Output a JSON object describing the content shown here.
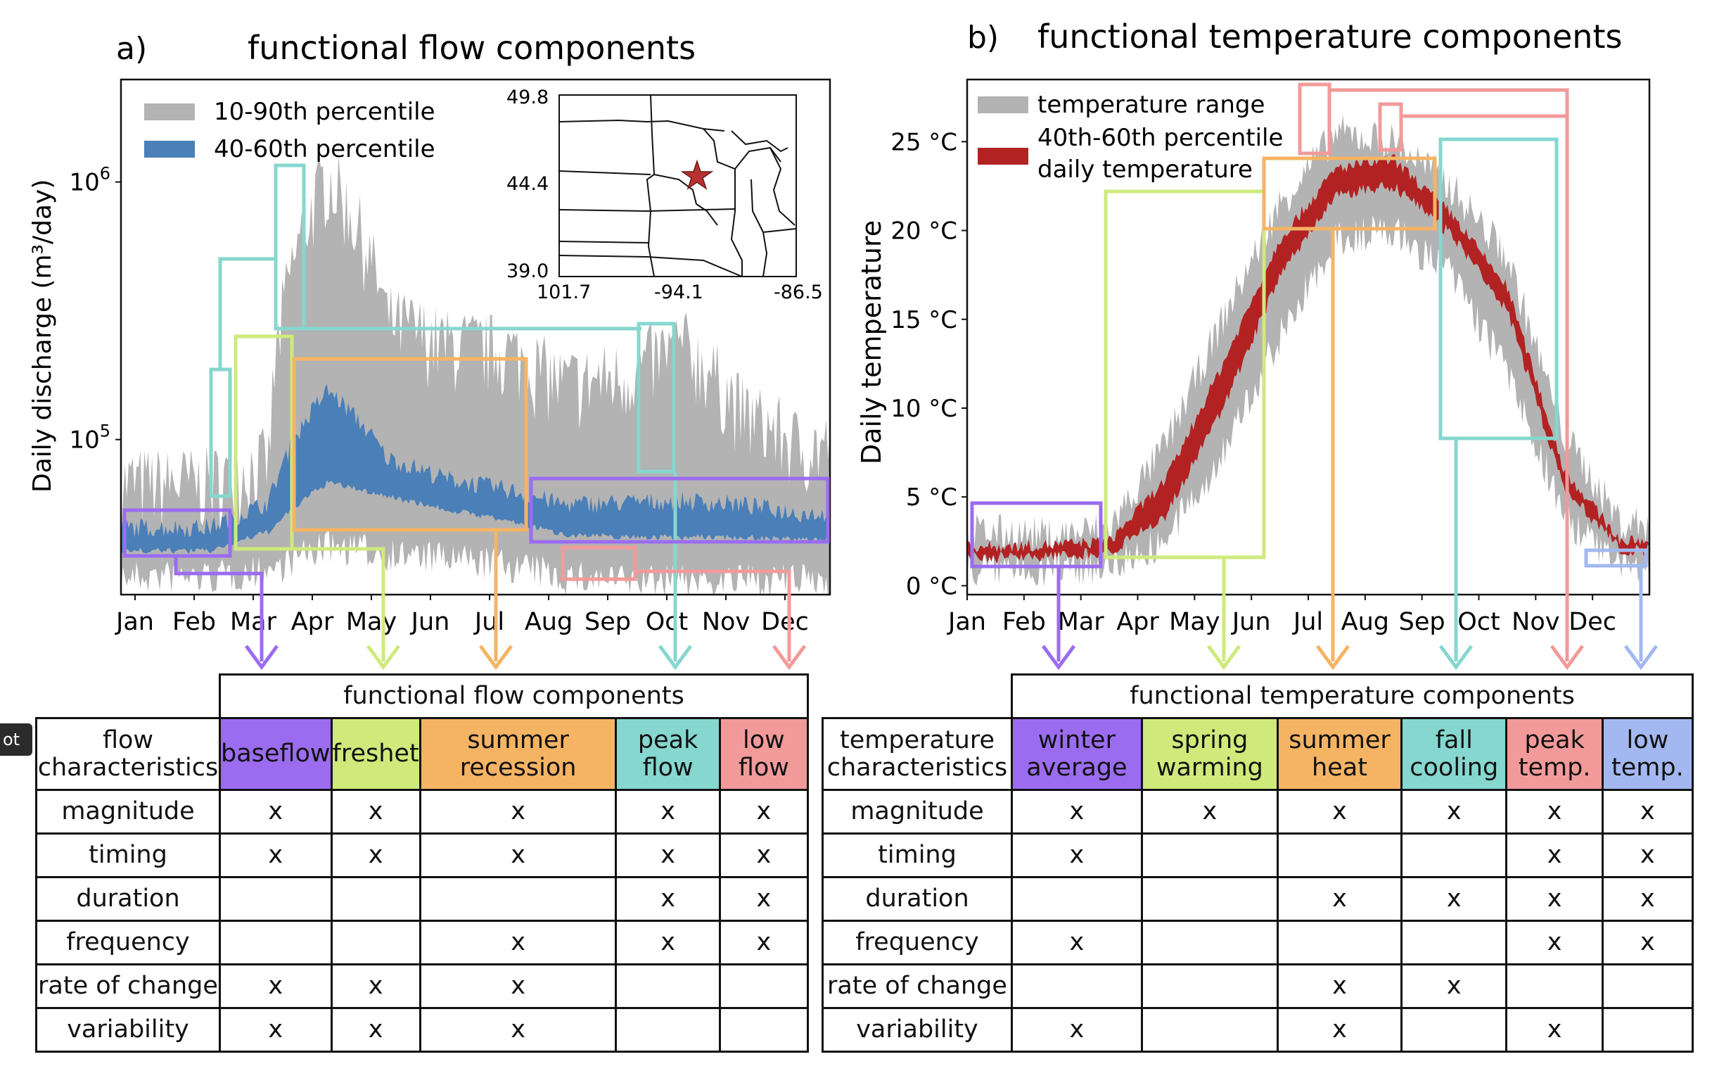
{
  "fonts_note": "",
  "panel_a": {
    "label": "a)",
    "title": "functional flow components",
    "ylabel": "Daily discharge (m³/day)",
    "yticks": [
      {
        "label": "10",
        "exp": "6",
        "value": 1000000
      },
      {
        "label": "10",
        "exp": "5",
        "value": 100000
      }
    ],
    "months": [
      "Jan",
      "Feb",
      "Mar",
      "Apr",
      "May",
      "Jun",
      "Jul",
      "Aug",
      "Sep",
      "Oct",
      "Nov",
      "Dec"
    ],
    "legend": [
      {
        "label": "10-90th percentile",
        "color": "#b3b3b3"
      },
      {
        "label": "40-60th percentile",
        "color": "#4a7fb8"
      }
    ],
    "inset": {
      "y_top": "49.8",
      "y_mid": "44.4",
      "y_bot": "39.0",
      "x_left": "101.7",
      "x_mid": "-94.1",
      "x_right": "-86.5"
    },
    "components": [
      {
        "name": "baseflow",
        "color": "#9b6cf0"
      },
      {
        "name": "freshet",
        "color": "#c8e87a"
      },
      {
        "name": "summer recession",
        "color": "#f5b464"
      },
      {
        "name": "peak flow",
        "color": "#86d7cf"
      },
      {
        "name": "low flow",
        "color": "#f29a9a"
      }
    ]
  },
  "panel_b": {
    "label": "b)",
    "title": "functional temperature components",
    "ylabel": "Daily temperature",
    "yticks": [
      "0 °C",
      "5 °C",
      "10 °C",
      "15 °C",
      "20 °C",
      "25 °C"
    ],
    "months": [
      "Jan",
      "Feb",
      "Mar",
      "Apr",
      "May",
      "Jun",
      "Jul",
      "Aug",
      "Sep",
      "Oct",
      "Nov",
      "Dec"
    ],
    "legend": [
      {
        "label": "temperature range",
        "color": "#b3b3b3"
      },
      {
        "label": "40th-60th percentile",
        "color": "#b22222"
      },
      {
        "label": "daily temperature",
        "color": ""
      }
    ]
  },
  "chart_data": [
    {
      "type": "area",
      "title": "functional flow components",
      "ylabel": "Daily discharge (m³/day)",
      "yscale": "log",
      "x": [
        "Jan",
        "Feb",
        "Mar",
        "Apr",
        "May",
        "Jun",
        "Jul",
        "Aug",
        "Sep",
        "Oct",
        "Nov",
        "Dec"
      ],
      "series": [
        {
          "name": "10-90th percentile",
          "low": [
            34000,
            34000,
            36000,
            45000,
            42000,
            40000,
            38000,
            34000,
            33000,
            33000,
            33000,
            33000
          ],
          "high": [
            58000,
            58000,
            70000,
            900000,
            250000,
            200000,
            190000,
            140000,
            150000,
            200000,
            110000,
            80000
          ]
        },
        {
          "name": "40-60th percentile",
          "low": [
            38000,
            38000,
            45000,
            70000,
            62000,
            55000,
            50000,
            44000,
            43000,
            43000,
            43000,
            42000
          ],
          "high": [
            44000,
            44000,
            55000,
            150000,
            82000,
            68000,
            62000,
            54000,
            55000,
            56000,
            54000,
            50000
          ]
        }
      ],
      "ylim": [
        25000,
        2500000
      ]
    },
    {
      "type": "area",
      "title": "functional temperature components",
      "ylabel": "Daily temperature",
      "x": [
        "Jan",
        "Feb",
        "Mar",
        "Apr",
        "May",
        "Jun",
        "Jul",
        "Aug",
        "Sep",
        "Oct",
        "Nov",
        "Dec"
      ],
      "series": [
        {
          "name": "temperature range",
          "low": [
            1.0,
            1.0,
            1.2,
            2.5,
            7.5,
            14.0,
            19.5,
            20.0,
            17.5,
            12.0,
            4.0,
            1.0
          ],
          "high": [
            3.0,
            2.8,
            3.2,
            8.0,
            15.0,
            21.5,
            25.5,
            25.0,
            22.5,
            18.5,
            8.5,
            3.5
          ]
        },
        {
          "name": "40th-60th percentile",
          "low": [
            1.6,
            1.7,
            1.9,
            4.0,
            10.0,
            17.5,
            22.0,
            22.5,
            19.8,
            15.5,
            5.5,
            2.0
          ],
          "high": [
            2.2,
            2.3,
            2.5,
            6.0,
            12.5,
            19.5,
            23.5,
            24.0,
            21.0,
            16.8,
            6.5,
            2.5
          ]
        }
      ],
      "ylim": [
        -0.5,
        28.5
      ]
    }
  ],
  "flow_table": {
    "header": "functional flow components",
    "row_header": "flow characteristics",
    "columns": [
      {
        "label": "baseflow",
        "color": "#9b6cf0"
      },
      {
        "label": "freshet",
        "color": "#cfea7a"
      },
      {
        "label": "summer recession",
        "color": "#f5b464"
      },
      {
        "label": "peak flow",
        "color": "#86d7cf"
      },
      {
        "label": "low flow",
        "color": "#f29a9a"
      }
    ],
    "rows": [
      {
        "label": "magnitude",
        "cells": [
          "x",
          "x",
          "x",
          "x",
          "x"
        ]
      },
      {
        "label": "timing",
        "cells": [
          "x",
          "x",
          "x",
          "x",
          "x"
        ]
      },
      {
        "label": "duration",
        "cells": [
          "",
          "",
          "",
          "x",
          "x"
        ]
      },
      {
        "label": "frequency",
        "cells": [
          "",
          "",
          "x",
          "x",
          "x"
        ]
      },
      {
        "label": "rate of change",
        "cells": [
          "x",
          "x",
          "x",
          "",
          ""
        ]
      },
      {
        "label": "variability",
        "cells": [
          "x",
          "x",
          "x",
          "",
          ""
        ]
      }
    ]
  },
  "temp_table": {
    "header": "functional temperature components",
    "row_header": "temperature characteristics",
    "columns": [
      {
        "label": "winter average",
        "color": "#9b6cf0"
      },
      {
        "label": "spring warming",
        "color": "#cfea7a"
      },
      {
        "label": "summer heat",
        "color": "#f5b464"
      },
      {
        "label": "fall cooling",
        "color": "#86d7cf"
      },
      {
        "label": "peak temp.",
        "color": "#f29a9a"
      },
      {
        "label": "low temp.",
        "color": "#a3b8f0"
      }
    ],
    "rows": [
      {
        "label": "magnitude",
        "cells": [
          "x",
          "x",
          "x",
          "x",
          "x",
          "x"
        ]
      },
      {
        "label": "timing",
        "cells": [
          "x",
          "",
          "",
          "",
          "x",
          "x"
        ]
      },
      {
        "label": "duration",
        "cells": [
          "",
          "",
          "x",
          "x",
          "x",
          "x"
        ]
      },
      {
        "label": "frequency",
        "cells": [
          "x",
          "",
          "",
          "",
          "x",
          "x"
        ]
      },
      {
        "label": "rate of change",
        "cells": [
          "",
          "",
          "x",
          "x",
          "",
          ""
        ]
      },
      {
        "label": "variability",
        "cells": [
          "x",
          "",
          "x",
          "",
          "x",
          ""
        ]
      }
    ]
  },
  "badge": "ot"
}
